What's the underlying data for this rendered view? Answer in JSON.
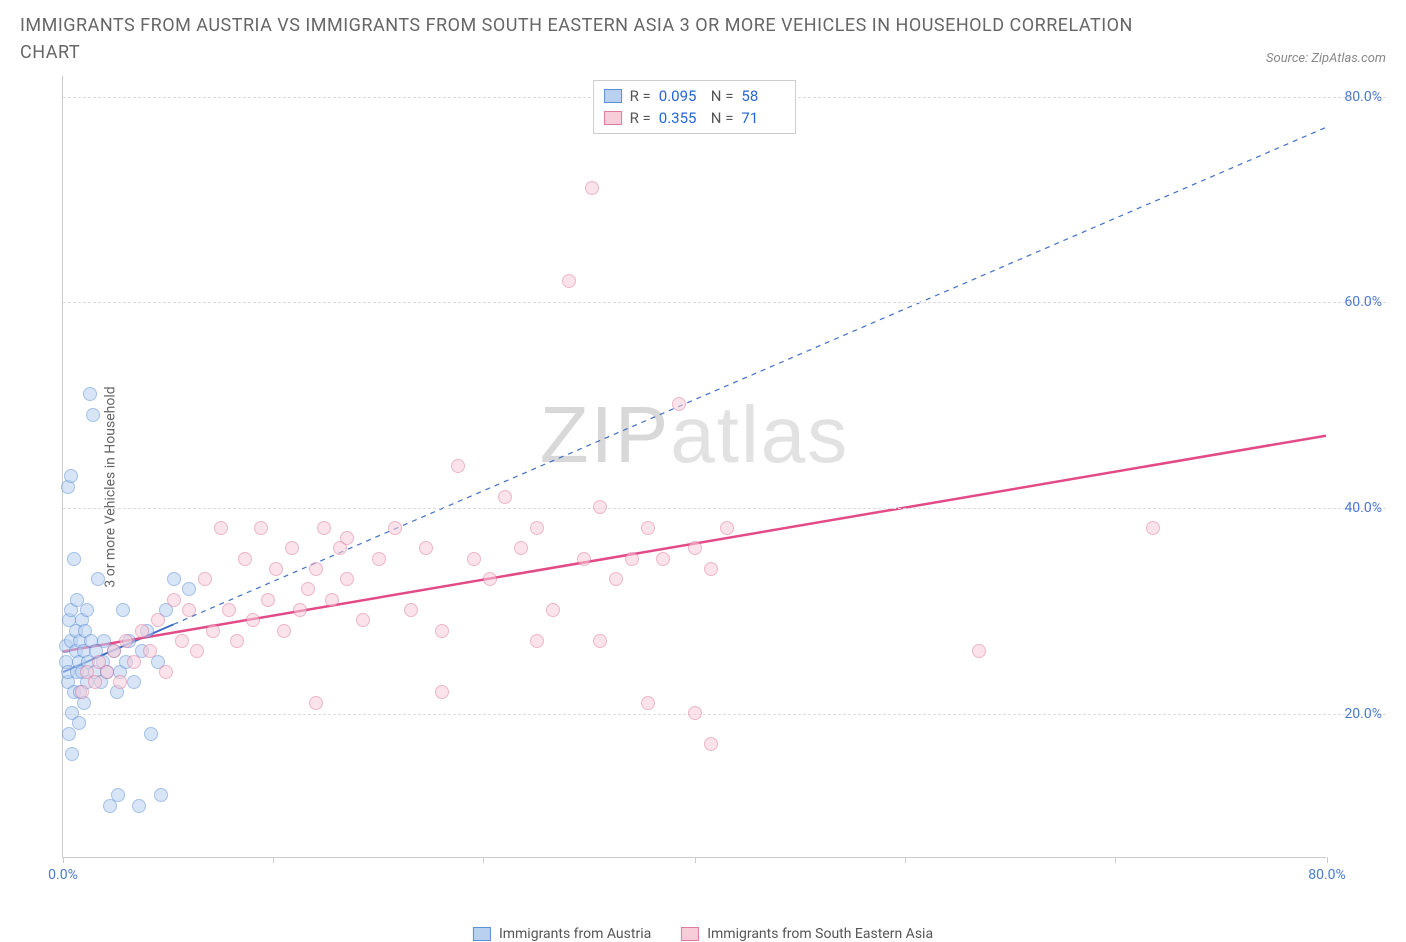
{
  "title": "IMMIGRANTS FROM AUSTRIA VS IMMIGRANTS FROM SOUTH EASTERN ASIA 3 OR MORE VEHICLES IN HOUSEHOLD CORRELATION CHART",
  "source_label": "Source: ZipAtlas.com",
  "ylabel": "3 or more Vehicles in Household",
  "watermark_a": "ZIP",
  "watermark_b": "atlas",
  "chart": {
    "type": "scatter",
    "xlim": [
      0,
      80
    ],
    "ylim": [
      6,
      82
    ],
    "y_ticks": [
      20,
      40,
      60,
      80
    ],
    "y_tick_labels": [
      "20.0%",
      "40.0%",
      "60.0%",
      "80.0%"
    ],
    "x_ticks": [
      0,
      13.3,
      26.6,
      40,
      53.3,
      66.6,
      80
    ],
    "x_tick_labels": [
      "0.0%",
      "",
      "",
      "",
      "",
      "",
      "80.0%"
    ],
    "background_color": "#ffffff",
    "grid_color": "#dddddd",
    "axis_color": "#cccccc",
    "marker_radius": 7,
    "marker_stroke_width": 1,
    "series": [
      {
        "name": "Immigrants from Austria",
        "fill": "#b9d0f0",
        "stroke": "#5b8fd6",
        "fill_opacity": 0.55,
        "R": "0.095",
        "N": "58",
        "trend": {
          "x1": 0,
          "y1": 24,
          "x2": 80,
          "y2": 77,
          "solid_until_x": 7,
          "color": "#3f6fc7",
          "width": 2,
          "dash": "5,5"
        },
        "points": [
          [
            0.2,
            25
          ],
          [
            0.2,
            26.5
          ],
          [
            0.3,
            42
          ],
          [
            0.3,
            23
          ],
          [
            0.3,
            24
          ],
          [
            0.4,
            18
          ],
          [
            0.4,
            29
          ],
          [
            0.5,
            27
          ],
          [
            0.5,
            30
          ],
          [
            0.5,
            43
          ],
          [
            0.6,
            16
          ],
          [
            0.6,
            20
          ],
          [
            0.7,
            22
          ],
          [
            0.7,
            35
          ],
          [
            0.8,
            26
          ],
          [
            0.8,
            28
          ],
          [
            0.9,
            24
          ],
          [
            0.9,
            31
          ],
          [
            1.0,
            19
          ],
          [
            1.0,
            25
          ],
          [
            1.1,
            22
          ],
          [
            1.1,
            27
          ],
          [
            1.2,
            29
          ],
          [
            1.2,
            24
          ],
          [
            1.3,
            21
          ],
          [
            1.3,
            26
          ],
          [
            1.4,
            28
          ],
          [
            1.5,
            23
          ],
          [
            1.5,
            30
          ],
          [
            1.6,
            25
          ],
          [
            1.7,
            51
          ],
          [
            1.8,
            27
          ],
          [
            1.9,
            49
          ],
          [
            2.0,
            24
          ],
          [
            2.1,
            26
          ],
          [
            2.2,
            33
          ],
          [
            2.4,
            23
          ],
          [
            2.5,
            25
          ],
          [
            2.6,
            27
          ],
          [
            2.8,
            24
          ],
          [
            3.0,
            11
          ],
          [
            3.2,
            26
          ],
          [
            3.4,
            22
          ],
          [
            3.5,
            12
          ],
          [
            3.6,
            24
          ],
          [
            3.8,
            30
          ],
          [
            4.0,
            25
          ],
          [
            4.2,
            27
          ],
          [
            4.5,
            23
          ],
          [
            4.8,
            11
          ],
          [
            5.0,
            26
          ],
          [
            5.3,
            28
          ],
          [
            5.6,
            18
          ],
          [
            6.0,
            25
          ],
          [
            6.5,
            30
          ],
          [
            7.0,
            33
          ],
          [
            8.0,
            32
          ],
          [
            6.2,
            12
          ]
        ]
      },
      {
        "name": "Immigrants from South Eastern Asia",
        "fill": "#f7cdd9",
        "stroke": "#e07ba0",
        "fill_opacity": 0.55,
        "R": "0.355",
        "N": "71",
        "trend": {
          "x1": 0,
          "y1": 26,
          "x2": 80,
          "y2": 47,
          "solid_until_x": 80,
          "color": "#e24a88",
          "width": 2.5,
          "dash": ""
        },
        "points": [
          [
            1.2,
            22
          ],
          [
            1.5,
            24
          ],
          [
            2.0,
            23
          ],
          [
            2.3,
            25
          ],
          [
            2.8,
            24
          ],
          [
            3.2,
            26
          ],
          [
            3.6,
            23
          ],
          [
            4.0,
            27
          ],
          [
            4.5,
            25
          ],
          [
            5.0,
            28
          ],
          [
            5.5,
            26
          ],
          [
            6.0,
            29
          ],
          [
            6.5,
            24
          ],
          [
            7.0,
            31
          ],
          [
            7.5,
            27
          ],
          [
            8.0,
            30
          ],
          [
            8.5,
            26
          ],
          [
            9.0,
            33
          ],
          [
            9.5,
            28
          ],
          [
            10,
            38
          ],
          [
            10.5,
            30
          ],
          [
            11,
            27
          ],
          [
            11.5,
            35
          ],
          [
            12,
            29
          ],
          [
            12.5,
            38
          ],
          [
            13,
            31
          ],
          [
            13.5,
            34
          ],
          [
            14,
            28
          ],
          [
            14.5,
            36
          ],
          [
            15,
            30
          ],
          [
            15.5,
            32
          ],
          [
            16,
            34
          ],
          [
            16.5,
            38
          ],
          [
            17,
            31
          ],
          [
            17.5,
            36
          ],
          [
            18,
            33
          ],
          [
            19,
            29
          ],
          [
            20,
            35
          ],
          [
            21,
            38
          ],
          [
            22,
            30
          ],
          [
            23,
            36
          ],
          [
            24,
            28
          ],
          [
            25,
            44
          ],
          [
            26,
            35
          ],
          [
            27,
            33
          ],
          [
            28,
            41
          ],
          [
            29,
            36
          ],
          [
            30,
            38
          ],
          [
            31,
            30
          ],
          [
            32,
            62
          ],
          [
            33,
            35
          ],
          [
            33.5,
            71
          ],
          [
            34,
            40
          ],
          [
            35,
            33
          ],
          [
            36,
            35
          ],
          [
            37,
            38
          ],
          [
            38,
            35
          ],
          [
            39,
            50
          ],
          [
            40,
            36
          ],
          [
            41,
            34
          ],
          [
            42,
            38
          ],
          [
            37,
            21
          ],
          [
            40,
            20
          ],
          [
            41,
            17
          ],
          [
            24,
            22
          ],
          [
            18,
            37
          ],
          [
            58,
            26
          ],
          [
            69,
            38
          ],
          [
            16,
            21
          ],
          [
            30,
            27
          ],
          [
            34,
            27
          ]
        ]
      }
    ],
    "legend_bottom": [
      {
        "label": "Immigrants from Austria",
        "fill": "#b9d0f0",
        "stroke": "#5b8fd6"
      },
      {
        "label": "Immigrants from South Eastern Asia",
        "fill": "#f7cdd9",
        "stroke": "#e07ba0"
      }
    ]
  }
}
